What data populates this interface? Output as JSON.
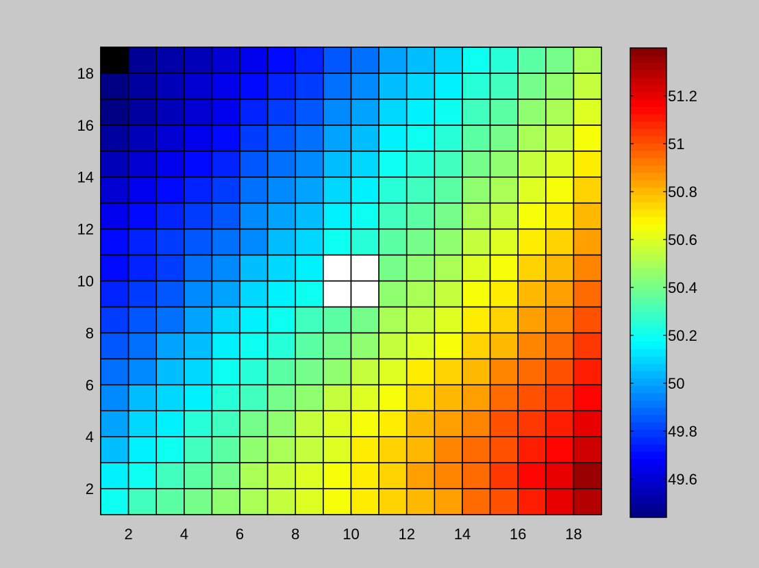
{
  "chart_data": [
    {
      "type": "heatmap",
      "title": "",
      "xlabel": "",
      "ylabel": "",
      "xlim": [
        1,
        19
      ],
      "ylim": [
        1,
        19
      ],
      "grid_size": 18,
      "x_ticks": [
        2,
        4,
        6,
        8,
        10,
        12,
        14,
        16,
        18
      ],
      "x_tick_labels": [
        "2",
        "4",
        "6",
        "8",
        "10",
        "12",
        "14",
        "16",
        "18"
      ],
      "y_ticks": [
        2,
        4,
        6,
        8,
        10,
        12,
        14,
        16,
        18
      ],
      "y_tick_labels": [
        "2",
        "4",
        "6",
        "8",
        "10",
        "12",
        "14",
        "16",
        "18"
      ],
      "colormap": "jet",
      "clim": [
        49.44,
        51.4
      ],
      "cell_edge_color": "#000000",
      "empty_cell_color": "#ffffff",
      "rows_from_bottom": [
        [
          50.2,
          50.3,
          50.35,
          50.4,
          50.45,
          50.5,
          50.55,
          50.6,
          50.65,
          50.7,
          50.75,
          50.8,
          50.85,
          50.95,
          51.0,
          51.1,
          51.2,
          51.3
        ],
        [
          50.15,
          50.2,
          50.3,
          50.35,
          50.4,
          50.5,
          50.55,
          50.6,
          50.65,
          50.7,
          50.75,
          50.85,
          50.9,
          50.95,
          51.05,
          51.15,
          51.2,
          51.35
        ],
        [
          50.05,
          50.15,
          50.2,
          50.3,
          50.35,
          50.45,
          50.5,
          50.55,
          50.6,
          50.7,
          50.75,
          50.8,
          50.9,
          50.95,
          51.0,
          51.1,
          51.15,
          51.25
        ],
        [
          50.0,
          50.1,
          50.15,
          50.25,
          50.3,
          50.4,
          50.45,
          50.55,
          50.6,
          50.65,
          50.7,
          50.8,
          50.85,
          50.9,
          51.0,
          51.05,
          51.1,
          51.2
        ],
        [
          49.95,
          50.05,
          50.1,
          50.15,
          50.25,
          50.3,
          50.4,
          50.45,
          50.55,
          50.6,
          50.65,
          50.75,
          50.8,
          50.85,
          50.95,
          51.0,
          51.05,
          51.15
        ],
        [
          49.9,
          49.95,
          50.05,
          50.1,
          50.2,
          50.25,
          50.35,
          50.4,
          50.45,
          50.55,
          50.6,
          50.7,
          50.75,
          50.8,
          50.9,
          50.95,
          51.0,
          51.1
        ],
        [
          49.85,
          49.9,
          50.0,
          50.05,
          50.15,
          50.2,
          50.25,
          50.35,
          50.4,
          50.45,
          50.55,
          50.6,
          50.65,
          50.75,
          50.8,
          50.9,
          50.95,
          51.05
        ],
        [
          49.8,
          49.85,
          49.9,
          50.0,
          50.1,
          50.15,
          50.2,
          50.3,
          50.35,
          50.4,
          50.5,
          50.55,
          50.6,
          50.7,
          50.75,
          50.85,
          50.9,
          51.0
        ],
        [
          49.75,
          49.8,
          49.85,
          49.95,
          50.0,
          50.1,
          50.15,
          50.2,
          null,
          null,
          50.45,
          50.5,
          50.55,
          50.65,
          50.7,
          50.8,
          50.85,
          50.95
        ],
        [
          49.7,
          49.75,
          49.8,
          49.9,
          49.95,
          50.05,
          50.1,
          50.15,
          null,
          null,
          50.4,
          50.45,
          50.5,
          50.6,
          50.65,
          50.75,
          50.8,
          50.9
        ],
        [
          49.7,
          49.75,
          49.8,
          49.85,
          49.9,
          49.95,
          50.05,
          50.1,
          50.2,
          50.25,
          50.35,
          50.4,
          50.45,
          50.55,
          50.6,
          50.7,
          50.75,
          50.85
        ],
        [
          49.65,
          49.7,
          49.75,
          49.8,
          49.85,
          49.95,
          50.0,
          50.05,
          50.15,
          50.2,
          50.3,
          50.35,
          50.4,
          50.5,
          50.55,
          50.65,
          50.7,
          50.8
        ],
        [
          49.6,
          49.65,
          49.7,
          49.75,
          49.8,
          49.9,
          49.95,
          50.0,
          50.1,
          50.15,
          50.25,
          50.3,
          50.35,
          50.45,
          50.5,
          50.6,
          50.65,
          50.75
        ],
        [
          49.55,
          49.6,
          49.65,
          49.7,
          49.75,
          49.85,
          49.9,
          49.95,
          50.05,
          50.1,
          50.2,
          50.25,
          50.3,
          50.4,
          50.45,
          50.55,
          50.6,
          50.7
        ],
        [
          49.5,
          49.55,
          49.6,
          49.65,
          49.7,
          49.8,
          49.85,
          49.9,
          50.0,
          50.05,
          50.15,
          50.2,
          50.25,
          50.35,
          50.4,
          50.5,
          50.55,
          50.65
        ],
        [
          49.45,
          49.5,
          49.55,
          49.6,
          49.65,
          49.75,
          49.8,
          49.85,
          49.95,
          50.0,
          50.1,
          50.15,
          50.2,
          50.3,
          50.35,
          50.45,
          50.5,
          50.6
        ],
        [
          49.45,
          49.5,
          49.55,
          49.6,
          49.65,
          49.7,
          49.75,
          49.8,
          49.9,
          49.95,
          50.05,
          50.1,
          50.15,
          50.25,
          50.3,
          50.4,
          50.45,
          50.55
        ],
        [
          null,
          49.48,
          49.52,
          49.55,
          49.6,
          49.65,
          49.7,
          49.75,
          49.85,
          49.9,
          50.0,
          50.05,
          50.1,
          50.2,
          50.25,
          50.35,
          50.4,
          50.5
        ]
      ],
      "black_cells": [
        [
          0,
          17
        ]
      ]
    },
    {
      "type": "colorbar",
      "colormap": "jet",
      "clim": [
        49.44,
        51.4
      ],
      "ticks": [
        49.6,
        49.8,
        50,
        50.2,
        50.4,
        50.6,
        50.8,
        51,
        51.2
      ],
      "tick_labels": [
        "49.6",
        "49.8",
        "50",
        "50.2",
        "50.4",
        "50.6",
        "50.8",
        "51",
        "51.2"
      ]
    }
  ]
}
